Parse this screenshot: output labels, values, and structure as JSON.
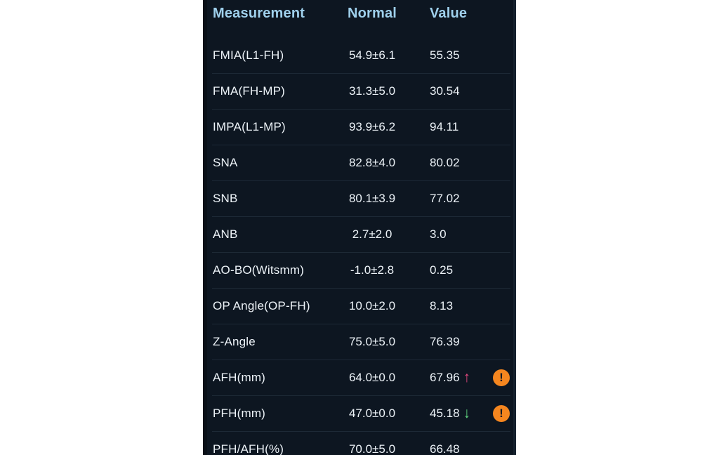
{
  "panel": {
    "background": "#0d1621",
    "divider_color": "#1d2936",
    "header_text_color": "#9fd0ec",
    "row_text_color": "#edf3f8"
  },
  "table": {
    "columns": [
      "Measurement",
      "Normal",
      "Value"
    ],
    "rows": [
      {
        "measurement": "FMIA(L1-FH)",
        "normal": "54.9±6.1",
        "value": "55.35",
        "trend": null,
        "warning": false
      },
      {
        "measurement": "FMA(FH-MP)",
        "normal": "31.3±5.0",
        "value": "30.54",
        "trend": null,
        "warning": false
      },
      {
        "measurement": "IMPA(L1-MP)",
        "normal": "93.9±6.2",
        "value": "94.11",
        "trend": null,
        "warning": false
      },
      {
        "measurement": "SNA",
        "normal": "82.8±4.0",
        "value": "80.02",
        "trend": null,
        "warning": false
      },
      {
        "measurement": "SNB",
        "normal": "80.1±3.9",
        "value": "77.02",
        "trend": null,
        "warning": false
      },
      {
        "measurement": "ANB",
        "normal": "2.7±2.0",
        "value": "3.0",
        "trend": null,
        "warning": false
      },
      {
        "measurement": "AO-BO(Witsmm)",
        "normal": "-1.0±2.8",
        "value": "0.25",
        "trend": null,
        "warning": false
      },
      {
        "measurement": "OP Angle(OP-FH)",
        "normal": "10.0±2.0",
        "value": "8.13",
        "trend": null,
        "warning": false
      },
      {
        "measurement": "Z-Angle",
        "normal": "75.0±5.0",
        "value": "76.39",
        "trend": null,
        "warning": false
      },
      {
        "measurement": "AFH(mm)",
        "normal": "64.0±0.0",
        "value": "67.96",
        "trend": "up",
        "warning": true
      },
      {
        "measurement": "PFH(mm)",
        "normal": "47.0±0.0",
        "value": "45.18",
        "trend": "down",
        "warning": true
      },
      {
        "measurement": "PFH/AFH(%)",
        "normal": "70.0±5.0",
        "value": "66.48",
        "trend": null,
        "warning": false
      }
    ]
  },
  "icons": {
    "up_arrow": "↑",
    "down_arrow": "↓",
    "warning": "!"
  },
  "colors": {
    "up_arrow": "#e0487e",
    "down_arrow": "#5fd37f",
    "warning_bg": "#f5861f",
    "warning_glyph": "#101924"
  }
}
